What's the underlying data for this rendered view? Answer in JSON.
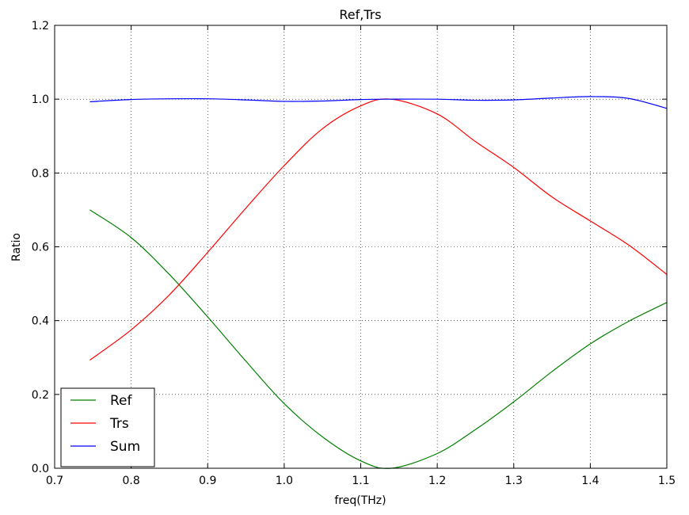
{
  "chart_data": {
    "type": "line",
    "title": "Ref,Trs",
    "xlabel": "freq(THz)",
    "ylabel": "Ratio",
    "xlim": [
      0.7,
      1.5
    ],
    "ylim": [
      0.0,
      1.2
    ],
    "xticks": [
      "0.7",
      "0.8",
      "0.9",
      "1.0",
      "1.1",
      "1.2",
      "1.3",
      "1.4",
      "1.5"
    ],
    "yticks": [
      "0.0",
      "0.2",
      "0.4",
      "0.6",
      "0.8",
      "1.0",
      "1.2"
    ],
    "grid": true,
    "legend_position": "lower-left",
    "x": [
      0.746,
      0.8,
      0.85,
      0.9,
      0.95,
      1.0,
      1.05,
      1.1,
      1.14,
      1.2,
      1.25,
      1.3,
      1.35,
      1.4,
      1.45,
      1.5
    ],
    "series": [
      {
        "name": "Ref",
        "color": "#008000",
        "values": [
          0.7,
          0.625,
          0.525,
          0.41,
          0.29,
          0.175,
          0.085,
          0.02,
          0.0,
          0.04,
          0.105,
          0.18,
          0.262,
          0.337,
          0.398,
          0.449
        ]
      },
      {
        "name": "Trs",
        "color": "#ff0000",
        "values": [
          0.293,
          0.375,
          0.47,
          0.585,
          0.705,
          0.82,
          0.92,
          0.982,
          1.0,
          0.96,
          0.885,
          0.815,
          0.735,
          0.67,
          0.605,
          0.525
        ]
      },
      {
        "name": "Sum",
        "color": "#0000ff",
        "values": [
          0.993,
          0.999,
          1.001,
          1.001,
          0.998,
          0.994,
          0.995,
          0.999,
          1.0,
          1.0,
          0.997,
          0.998,
          1.003,
          1.007,
          1.002,
          0.975
        ]
      }
    ]
  }
}
